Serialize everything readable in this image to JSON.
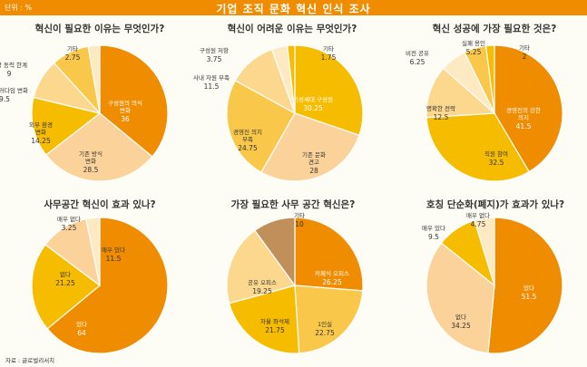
{
  "header": {
    "title": "기업 조직 문화 혁신 인식 조사",
    "unit": "단위 : %"
  },
  "source": "자료 : 글로벌리서치",
  "colors": {
    "header": "#f08c00",
    "background": "#fdfcf5",
    "pie_shades": [
      "#f08c00",
      "#fbd39a",
      "#f6bc00",
      "#fcd88f",
      "#f9c84a",
      "#fde9c2",
      "#c18f5a"
    ]
  },
  "chart_data": [
    {
      "type": "pie",
      "title": "혁신이 필요한 이유는 무엇인가?",
      "series": [
        {
          "label": "구성원의 의식 변화",
          "value": 36.0
        },
        {
          "label": "기존 방식 변화",
          "value": 28.5
        },
        {
          "label": "외부 환경 변화",
          "value": 14.25
        },
        {
          "label": "산업 패러다임 변화",
          "value": 9.5
        },
        {
          "label": "성장 동력 한계",
          "value": 9.0
        },
        {
          "label": "기타",
          "value": 2.75
        }
      ]
    },
    {
      "type": "pie",
      "title": "혁신이 어려운 이유는 무엇인가?",
      "series": [
        {
          "label": "기성세대 구성원",
          "value": 30.25
        },
        {
          "label": "기존 문화 견고",
          "value": 28.0
        },
        {
          "label": "경영진 의지 부족",
          "value": 24.75
        },
        {
          "label": "사내 자원 부족",
          "value": 11.5
        },
        {
          "label": "구성원 저항",
          "value": 3.75
        },
        {
          "label": "기타",
          "value": 1.75
        }
      ]
    },
    {
      "type": "pie",
      "title": "혁신 성공에 가장 필요한 것은?",
      "series": [
        {
          "label": "경영진의 강한 의지",
          "value": 41.5
        },
        {
          "label": "직원 참여",
          "value": 32.5
        },
        {
          "label": "명확한 전략",
          "value": 12.5
        },
        {
          "label": "비전 공유",
          "value": 6.25
        },
        {
          "label": "실패 용인",
          "value": 5.25
        },
        {
          "label": "기타",
          "value": 2.0
        }
      ]
    },
    {
      "type": "pie",
      "title": "사무공간 혁신이 효과 있나?",
      "series": [
        {
          "label": "있다",
          "value": 64.0
        },
        {
          "label": "없다",
          "value": 21.25
        },
        {
          "label": "매우 있다",
          "value": 11.5
        },
        {
          "label": "매우 없다",
          "value": 3.25
        }
      ]
    },
    {
      "type": "pie",
      "title": "가장 필요한 사무 공간 혁신은?",
      "series": [
        {
          "label": "카페식 오피스",
          "value": 26.25
        },
        {
          "label": "1인실",
          "value": 22.75
        },
        {
          "label": "자율 좌석제",
          "value": 21.75
        },
        {
          "label": "공유 오피스",
          "value": 19.25
        },
        {
          "label": "기타",
          "value": 10.0
        }
      ]
    },
    {
      "type": "pie",
      "title": "호칭 단순화(폐지)가 효과가 있나?",
      "series": [
        {
          "label": "있다",
          "value": 51.5
        },
        {
          "label": "없다",
          "value": 34.25
        },
        {
          "label": "매우 있다",
          "value": 9.5
        },
        {
          "label": "매우 없다",
          "value": 4.75
        }
      ]
    }
  ]
}
